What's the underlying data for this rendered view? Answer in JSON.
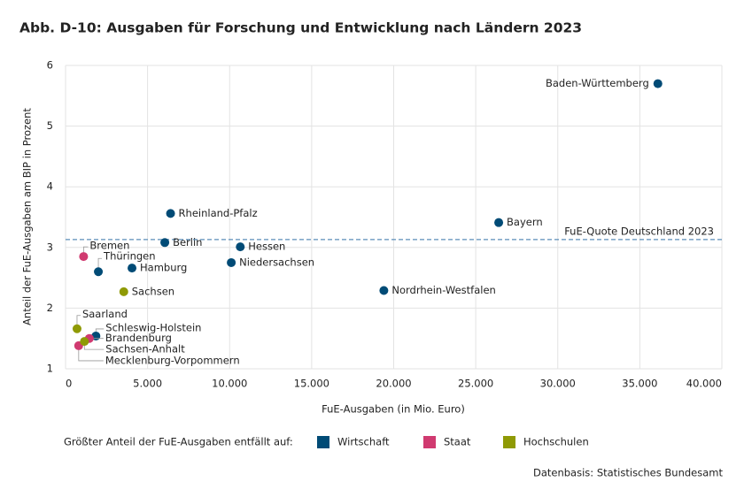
{
  "chart_data": {
    "type": "scatter",
    "title": "Abb. D-10: Ausgaben für Forschung und Entwicklung nach Ländern 2023",
    "x_label": "FuE-Ausgaben (in Mio. Euro)",
    "y_label": "Anteil der FuE-Ausgaben am BIP in Prozent",
    "xlim": [
      0,
      40000
    ],
    "ylim": [
      1,
      6
    ],
    "xticks": [
      0,
      {
        "value": 5000,
        "label": "5.000"
      },
      {
        "value": 10000,
        "label": "10.000"
      },
      {
        "value": 15000,
        "label": "15.000"
      },
      {
        "value": 20000,
        "label": "20.000"
      },
      {
        "value": 25000,
        "label": "25.000"
      },
      {
        "value": 30000,
        "label": "30.000"
      },
      {
        "value": 35000,
        "label": "35.000"
      },
      {
        "value": 40000,
        "label": "40.000"
      }
    ],
    "yticks": [
      1,
      2,
      3,
      4,
      5,
      6
    ],
    "grid": true,
    "legend_title": "Größter Anteil der FuE-Ausgaben entfällt auf:",
    "series": [
      {
        "name": "Wirtschaft",
        "color": "#004b76",
        "labels": [
          "Baden-Württemberg",
          "Bayern",
          "Rheinland-Pfalz",
          "Berlin",
          "Hessen",
          "Niedersachsen",
          "Nordrhein-Westfalen",
          "Hamburg",
          "Thüringen",
          "Schleswig-Holstein"
        ],
        "x": [
          36100,
          26400,
          6400,
          6050,
          10650,
          10100,
          19400,
          4050,
          2000,
          1850
        ],
        "values": [
          5.7,
          3.41,
          3.56,
          3.08,
          3.01,
          2.75,
          2.29,
          2.66,
          2.6,
          1.54
        ]
      },
      {
        "name": "Staat",
        "color": "#d03a70",
        "labels": [
          "Bremen",
          "Brandenburg",
          "Mecklenburg-Vorpommern"
        ],
        "x": [
          1100,
          1450,
          800
        ],
        "values": [
          2.85,
          1.5,
          1.38
        ]
      },
      {
        "name": "Hochschulen",
        "color": "#8f9a05",
        "labels": [
          "Sachsen",
          "Saarland",
          "Sachsen-Anhalt"
        ],
        "x": [
          3550,
          700,
          1150
        ],
        "values": [
          2.27,
          1.66,
          1.45
        ]
      }
    ],
    "reference_line": {
      "value": 3.13,
      "label": "FuE-Quote Deutschland 2023"
    },
    "source": "Datenbasis: Statistisches Bundesamt"
  }
}
